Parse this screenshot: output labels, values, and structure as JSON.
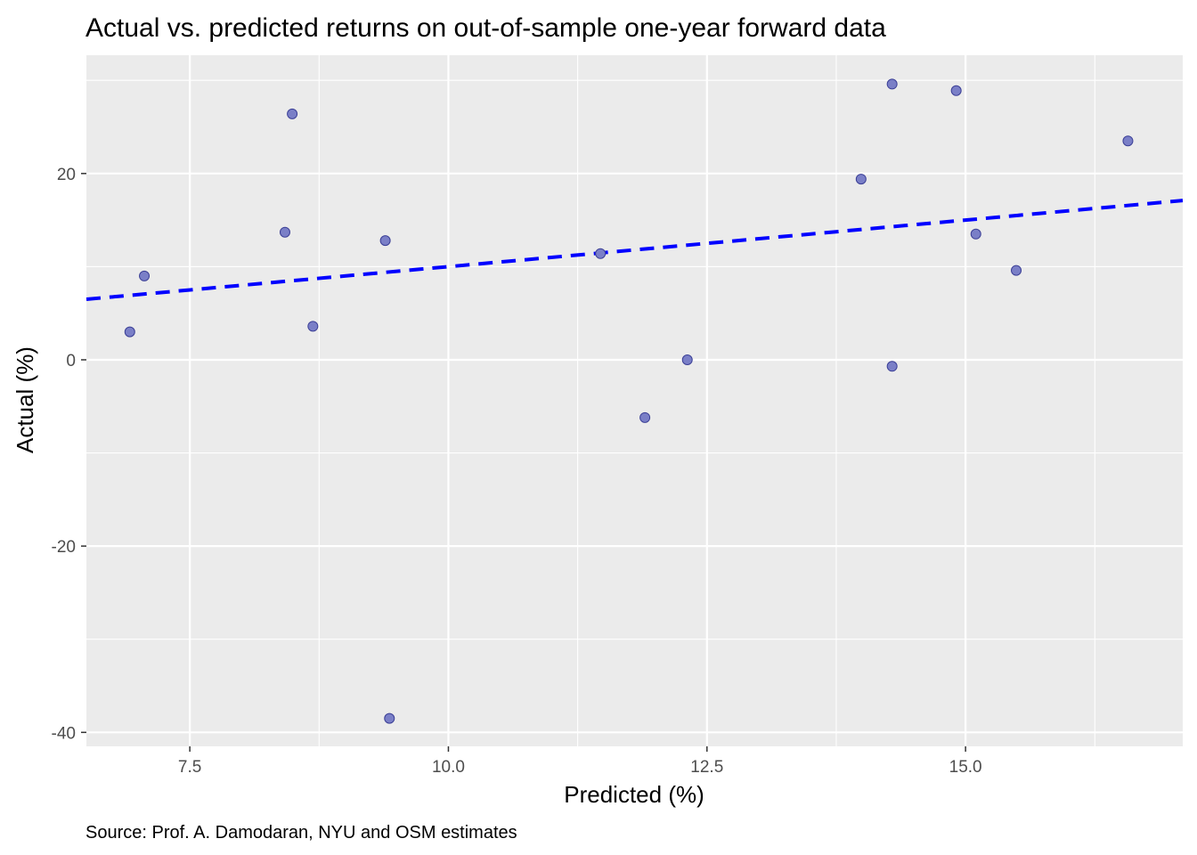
{
  "chart_data": {
    "type": "scatter",
    "title": "Actual vs. predicted returns on out-of-sample one-year forward data",
    "xlabel": "Predicted (%)",
    "ylabel": "Actual (%)",
    "caption": "Source: Prof. A. Damodaran, NYU and OSM estimates",
    "xlim": [
      6.5,
      17.1
    ],
    "ylim": [
      -41.5,
      32.7
    ],
    "x_ticks": [
      7.5,
      10.0,
      12.5,
      15.0
    ],
    "x_tick_labels": [
      "7.5",
      "10.0",
      "12.5",
      "15.0"
    ],
    "y_ticks": [
      -40,
      -20,
      0,
      20
    ],
    "y_tick_labels": [
      "-40",
      "-20",
      "0",
      "20"
    ],
    "grid": true,
    "points": [
      {
        "x": 6.92,
        "y": 3.0
      },
      {
        "x": 7.06,
        "y": 9.0
      },
      {
        "x": 8.42,
        "y": 13.7
      },
      {
        "x": 8.49,
        "y": 26.4
      },
      {
        "x": 8.69,
        "y": 3.6
      },
      {
        "x": 9.39,
        "y": 12.8
      },
      {
        "x": 9.43,
        "y": -38.5
      },
      {
        "x": 11.47,
        "y": 11.4
      },
      {
        "x": 11.9,
        "y": -6.2
      },
      {
        "x": 12.31,
        "y": 0.0
      },
      {
        "x": 13.99,
        "y": 19.4
      },
      {
        "x": 14.29,
        "y": 29.6
      },
      {
        "x": 14.29,
        "y": -0.7
      },
      {
        "x": 14.91,
        "y": 28.9
      },
      {
        "x": 15.1,
        "y": 13.5
      },
      {
        "x": 15.49,
        "y": 9.6
      },
      {
        "x": 16.57,
        "y": 23.5
      }
    ],
    "reference_line": {
      "style": "dashed",
      "x": [
        6.5,
        17.1
      ],
      "y": [
        6.5,
        17.1
      ]
    },
    "colors": {
      "point_fill": "#7a7fc7",
      "point_stroke": "#3b3f96",
      "line": "#0000ff",
      "panel": "#ebebeb",
      "grid": "#ffffff"
    }
  }
}
